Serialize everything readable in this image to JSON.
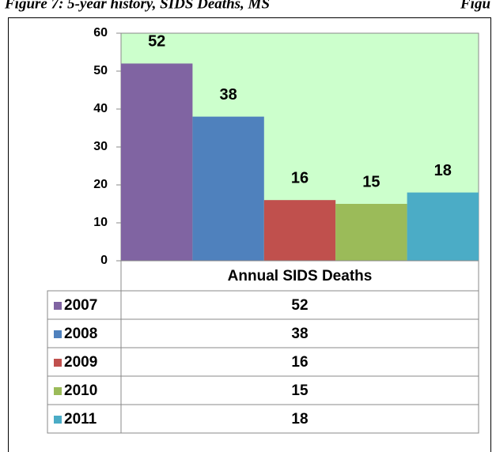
{
  "chart_data": {
    "type": "bar",
    "title": "Figure 7:  5-year history, SIDS Deaths, MS",
    "annotations": [
      "Figu"
    ],
    "categories": [
      "Annual SIDS Deaths"
    ],
    "series": [
      {
        "name": "2007",
        "color": "#8064a2",
        "values": [
          52
        ]
      },
      {
        "name": "2008",
        "color": "#4f81bd",
        "values": [
          38
        ]
      },
      {
        "name": "2009",
        "color": "#c0504d",
        "values": [
          16
        ]
      },
      {
        "name": "2010",
        "color": "#9bbb59",
        "values": [
          15
        ]
      },
      {
        "name": "2011",
        "color": "#4bacc6",
        "values": [
          18
        ]
      }
    ],
    "ylim": [
      0,
      60
    ],
    "yticks": [
      0,
      10,
      20,
      30,
      40,
      50,
      60
    ],
    "plot_background": "#ccffcc"
  }
}
